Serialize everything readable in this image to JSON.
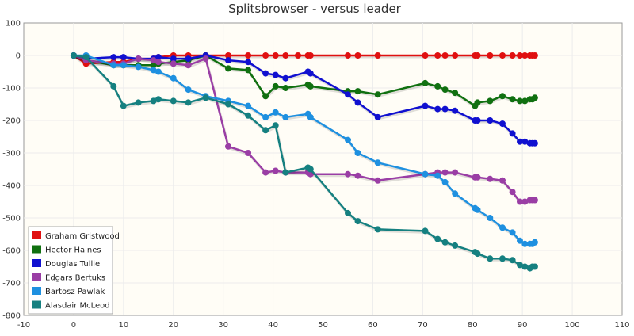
{
  "chart_data": {
    "type": "line",
    "title": "Splitsbrowser - versus leader",
    "xlabel": "",
    "ylabel": "",
    "xlim": [
      -10,
      110
    ],
    "ylim": [
      -800,
      100
    ],
    "xticks": [
      "-10",
      "0",
      "10",
      "20",
      "30",
      "40",
      "50",
      "60",
      "70",
      "80",
      "90",
      "100",
      "110"
    ],
    "yticks": [
      "100",
      "0",
      "-100",
      "-200",
      "-300",
      "-400",
      "-500",
      "-600",
      "-700",
      "-800"
    ],
    "grid": true,
    "legend_position": "bottom-left",
    "series": [
      {
        "name": "Graham Gristwood",
        "color": "#e01010",
        "points": [
          [
            0,
            0
          ],
          [
            2.5,
            -25
          ],
          [
            8,
            -20
          ],
          [
            10,
            -20
          ],
          [
            13,
            -10
          ],
          [
            16,
            -10
          ],
          [
            17,
            -5
          ],
          [
            20,
            0
          ],
          [
            23,
            0
          ],
          [
            26.5,
            0
          ],
          [
            31,
            0
          ],
          [
            35,
            0
          ],
          [
            38.5,
            0
          ],
          [
            40.5,
            0
          ],
          [
            42.5,
            0
          ],
          [
            45,
            0
          ],
          [
            47,
            0
          ],
          [
            47.5,
            0
          ],
          [
            55,
            0
          ],
          [
            57,
            0
          ],
          [
            61,
            0
          ],
          [
            70.5,
            0
          ],
          [
            73,
            0
          ],
          [
            74.5,
            0
          ],
          [
            76.5,
            0
          ],
          [
            80.5,
            0
          ],
          [
            81,
            0
          ],
          [
            83.5,
            0
          ],
          [
            86,
            0
          ],
          [
            88,
            0
          ],
          [
            89.5,
            0
          ],
          [
            90.5,
            0
          ],
          [
            91.5,
            0
          ],
          [
            92,
            0
          ],
          [
            92.5,
            0
          ]
        ]
      },
      {
        "name": "Hector Haines",
        "color": "#107010",
        "points": [
          [
            0,
            0
          ],
          [
            2.5,
            -15
          ],
          [
            8,
            -30
          ],
          [
            10,
            -30
          ],
          [
            13,
            -30
          ],
          [
            16,
            -30
          ],
          [
            17,
            -25
          ],
          [
            20,
            -20
          ],
          [
            23,
            -15
          ],
          [
            26.5,
            0
          ],
          [
            31,
            -40
          ],
          [
            35,
            -45
          ],
          [
            38.5,
            -125
          ],
          [
            40.5,
            -95
          ],
          [
            42.5,
            -100
          ],
          [
            47,
            -90
          ],
          [
            47.5,
            -95
          ],
          [
            55,
            -110
          ],
          [
            57,
            -110
          ],
          [
            61,
            -120
          ],
          [
            70.5,
            -85
          ],
          [
            73,
            -95
          ],
          [
            74.5,
            -105
          ],
          [
            76.5,
            -115
          ],
          [
            80.5,
            -155
          ],
          [
            81,
            -145
          ],
          [
            83.5,
            -140
          ],
          [
            86,
            -125
          ],
          [
            88,
            -135
          ],
          [
            89.5,
            -140
          ],
          [
            90.5,
            -140
          ],
          [
            91.5,
            -135
          ],
          [
            92,
            -135
          ],
          [
            92.5,
            -130
          ]
        ]
      },
      {
        "name": "Douglas Tullie",
        "color": "#1010d0",
        "points": [
          [
            0,
            0
          ],
          [
            2.5,
            -10
          ],
          [
            8,
            -5
          ],
          [
            10,
            -5
          ],
          [
            13,
            -10
          ],
          [
            16,
            -10
          ],
          [
            17,
            -5
          ],
          [
            20,
            -10
          ],
          [
            23,
            -10
          ],
          [
            26.5,
            0
          ],
          [
            31,
            -15
          ],
          [
            35,
            -20
          ],
          [
            38.5,
            -55
          ],
          [
            40.5,
            -60
          ],
          [
            42.5,
            -70
          ],
          [
            47,
            -50
          ],
          [
            47.5,
            -55
          ],
          [
            55,
            -120
          ],
          [
            57,
            -145
          ],
          [
            61,
            -190
          ],
          [
            70.5,
            -155
          ],
          [
            73,
            -165
          ],
          [
            74.5,
            -165
          ],
          [
            76.5,
            -170
          ],
          [
            80.5,
            -200
          ],
          [
            81,
            -200
          ],
          [
            83.5,
            -200
          ],
          [
            86,
            -210
          ],
          [
            88,
            -240
          ],
          [
            89.5,
            -265
          ],
          [
            90.5,
            -265
          ],
          [
            91.5,
            -270
          ],
          [
            92,
            -270
          ],
          [
            92.5,
            -270
          ]
        ]
      },
      {
        "name": "Edgars Bertuks",
        "color": "#9a3ea5",
        "points": [
          [
            0,
            0
          ],
          [
            2.5,
            -15
          ],
          [
            8,
            -25
          ],
          [
            10,
            -25
          ],
          [
            13,
            -10
          ],
          [
            16,
            -15
          ],
          [
            17,
            -20
          ],
          [
            20,
            -25
          ],
          [
            23,
            -30
          ],
          [
            26.5,
            -10
          ],
          [
            31,
            -280
          ],
          [
            35,
            -300
          ],
          [
            38.5,
            -360
          ],
          [
            40.5,
            -355
          ],
          [
            42.5,
            -360
          ],
          [
            47,
            -360
          ],
          [
            47.5,
            -365
          ],
          [
            55,
            -365
          ],
          [
            57,
            -370
          ],
          [
            61,
            -385
          ],
          [
            70.5,
            -365
          ],
          [
            73,
            -360
          ],
          [
            74.5,
            -360
          ],
          [
            76.5,
            -360
          ],
          [
            80.5,
            -375
          ],
          [
            81,
            -375
          ],
          [
            83.5,
            -380
          ],
          [
            86,
            -385
          ],
          [
            88,
            -420
          ],
          [
            89.5,
            -450
          ],
          [
            90.5,
            -450
          ],
          [
            91.5,
            -445
          ],
          [
            92,
            -445
          ],
          [
            92.5,
            -445
          ]
        ]
      },
      {
        "name": "Bartosz Pawlak",
        "color": "#1e90e0",
        "points": [
          [
            0,
            0
          ],
          [
            2.5,
            0
          ],
          [
            8,
            -30
          ],
          [
            10,
            -30
          ],
          [
            13,
            -35
          ],
          [
            16,
            -45
          ],
          [
            17,
            -50
          ],
          [
            20,
            -70
          ],
          [
            23,
            -105
          ],
          [
            26.5,
            -125
          ],
          [
            31,
            -140
          ],
          [
            35,
            -155
          ],
          [
            38.5,
            -190
          ],
          [
            40.5,
            -175
          ],
          [
            42.5,
            -190
          ],
          [
            47,
            -180
          ],
          [
            47.5,
            -190
          ],
          [
            55,
            -260
          ],
          [
            57,
            -300
          ],
          [
            61,
            -330
          ],
          [
            70.5,
            -365
          ],
          [
            73,
            -370
          ],
          [
            74.5,
            -390
          ],
          [
            76.5,
            -425
          ],
          [
            80.5,
            -470
          ],
          [
            81,
            -475
          ],
          [
            83.5,
            -500
          ],
          [
            86,
            -530
          ],
          [
            88,
            -545
          ],
          [
            89.5,
            -570
          ],
          [
            90.5,
            -580
          ],
          [
            91.5,
            -580
          ],
          [
            92,
            -580
          ],
          [
            92.5,
            -575
          ]
        ]
      },
      {
        "name": "Alasdair McLeod",
        "color": "#158080",
        "points": [
          [
            0,
            0
          ],
          [
            2.5,
            -5
          ],
          [
            8,
            -95
          ],
          [
            10,
            -155
          ],
          [
            13,
            -145
          ],
          [
            16,
            -140
          ],
          [
            17,
            -135
          ],
          [
            20,
            -140
          ],
          [
            23,
            -145
          ],
          [
            26.5,
            -130
          ],
          [
            31,
            -150
          ],
          [
            35,
            -185
          ],
          [
            38.5,
            -230
          ],
          [
            40.5,
            -215
          ],
          [
            42.5,
            -360
          ],
          [
            47,
            -345
          ],
          [
            47.5,
            -350
          ],
          [
            55,
            -485
          ],
          [
            57,
            -510
          ],
          [
            61,
            -535
          ],
          [
            70.5,
            -540
          ],
          [
            73,
            -565
          ],
          [
            74.5,
            -575
          ],
          [
            76.5,
            -585
          ],
          [
            80.5,
            -605
          ],
          [
            81,
            -610
          ],
          [
            83.5,
            -625
          ],
          [
            86,
            -625
          ],
          [
            88,
            -630
          ],
          [
            89.5,
            -645
          ],
          [
            90.5,
            -650
          ],
          [
            91.5,
            -655
          ],
          [
            92,
            -650
          ],
          [
            92.5,
            -650
          ]
        ]
      }
    ]
  }
}
